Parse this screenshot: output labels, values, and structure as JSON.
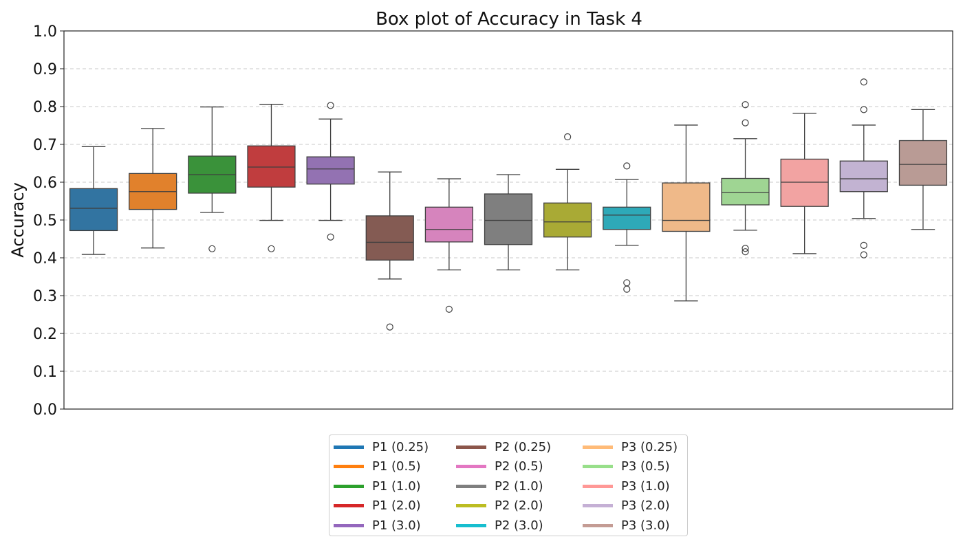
{
  "chart_data": {
    "type": "box",
    "title": "Box plot of Accuracy in Task 4",
    "xlabel": "",
    "ylabel": "Accuracy",
    "ylim": [
      0.0,
      1.0
    ],
    "yticks": [
      "0.0",
      "0.1",
      "0.2",
      "0.3",
      "0.4",
      "0.5",
      "0.6",
      "0.7",
      "0.8",
      "0.9",
      "1.0"
    ],
    "grid": "horizontal dashed",
    "legend_position": "bottom-center",
    "series": [
      {
        "name": "P1 (0.25)",
        "color": "#1f77b4",
        "fill": "#3274a1",
        "whisker_low": 0.409,
        "q1": 0.472,
        "median": 0.531,
        "q3": 0.583,
        "whisker_high": 0.694,
        "outliers": []
      },
      {
        "name": "P1 (0.5)",
        "color": "#ff7f0e",
        "fill": "#e1812c",
        "whisker_low": 0.426,
        "q1": 0.528,
        "median": 0.575,
        "q3": 0.623,
        "whisker_high": 0.742,
        "outliers": []
      },
      {
        "name": "P1 (1.0)",
        "color": "#2ca02c",
        "fill": "#3a923a",
        "whisker_low": 0.52,
        "q1": 0.571,
        "median": 0.62,
        "q3": 0.669,
        "whisker_high": 0.799,
        "outliers": [
          0.424
        ]
      },
      {
        "name": "P1 (2.0)",
        "color": "#d62728",
        "fill": "#c03d3e",
        "whisker_low": 0.499,
        "q1": 0.587,
        "median": 0.64,
        "q3": 0.696,
        "whisker_high": 0.806,
        "outliers": [
          0.424
        ]
      },
      {
        "name": "P1 (3.0)",
        "color": "#9467bd",
        "fill": "#9372b2",
        "whisker_low": 0.499,
        "q1": 0.595,
        "median": 0.635,
        "q3": 0.667,
        "whisker_high": 0.767,
        "outliers": [
          0.803,
          0.455
        ]
      },
      {
        "name": "P2 (0.25)",
        "color": "#8c564b",
        "fill": "#845b53",
        "whisker_low": 0.344,
        "q1": 0.394,
        "median": 0.441,
        "q3": 0.511,
        "whisker_high": 0.627,
        "outliers": [
          0.217
        ]
      },
      {
        "name": "P2 (0.5)",
        "color": "#e377c2",
        "fill": "#d684bd",
        "whisker_low": 0.368,
        "q1": 0.442,
        "median": 0.475,
        "q3": 0.534,
        "whisker_high": 0.609,
        "outliers": [
          0.264
        ]
      },
      {
        "name": "P2 (1.0)",
        "color": "#7f7f7f",
        "fill": "#7f7f7f",
        "whisker_low": 0.368,
        "q1": 0.435,
        "median": 0.499,
        "q3": 0.569,
        "whisker_high": 0.62,
        "outliers": []
      },
      {
        "name": "P2 (2.0)",
        "color": "#bcbd22",
        "fill": "#a9aa35",
        "whisker_low": 0.368,
        "q1": 0.455,
        "median": 0.495,
        "q3": 0.545,
        "whisker_high": 0.634,
        "outliers": [
          0.72
        ]
      },
      {
        "name": "P2 (3.0)",
        "color": "#17becf",
        "fill": "#2ea9b8",
        "whisker_low": 0.433,
        "q1": 0.475,
        "median": 0.513,
        "q3": 0.534,
        "whisker_high": 0.607,
        "outliers": [
          0.643,
          0.334,
          0.317
        ]
      },
      {
        "name": "P3 (0.25)",
        "color": "#ffbb78",
        "fill": "#efb989",
        "whisker_low": 0.286,
        "q1": 0.47,
        "median": 0.499,
        "q3": 0.598,
        "whisker_high": 0.751,
        "outliers": []
      },
      {
        "name": "P3 (0.5)",
        "color": "#98df8a",
        "fill": "#9fd593",
        "whisker_low": 0.473,
        "q1": 0.54,
        "median": 0.573,
        "q3": 0.61,
        "whisker_high": 0.715,
        "outliers": [
          0.805,
          0.757,
          0.425,
          0.416
        ]
      },
      {
        "name": "P3 (1.0)",
        "color": "#ff9896",
        "fill": "#f2a3a2",
        "whisker_low": 0.411,
        "q1": 0.536,
        "median": 0.6,
        "q3": 0.661,
        "whisker_high": 0.782,
        "outliers": []
      },
      {
        "name": "P3 (2.0)",
        "color": "#c5b0d5",
        "fill": "#c2b3d2",
        "whisker_low": 0.504,
        "q1": 0.575,
        "median": 0.609,
        "q3": 0.656,
        "whisker_high": 0.751,
        "outliers": [
          0.865,
          0.792,
          0.433,
          0.408
        ]
      },
      {
        "name": "P3 (3.0)",
        "color": "#c49c94",
        "fill": "#b99b95",
        "whisker_low": 0.475,
        "q1": 0.592,
        "median": 0.647,
        "q3": 0.71,
        "whisker_high": 0.792,
        "outliers": []
      }
    ]
  }
}
